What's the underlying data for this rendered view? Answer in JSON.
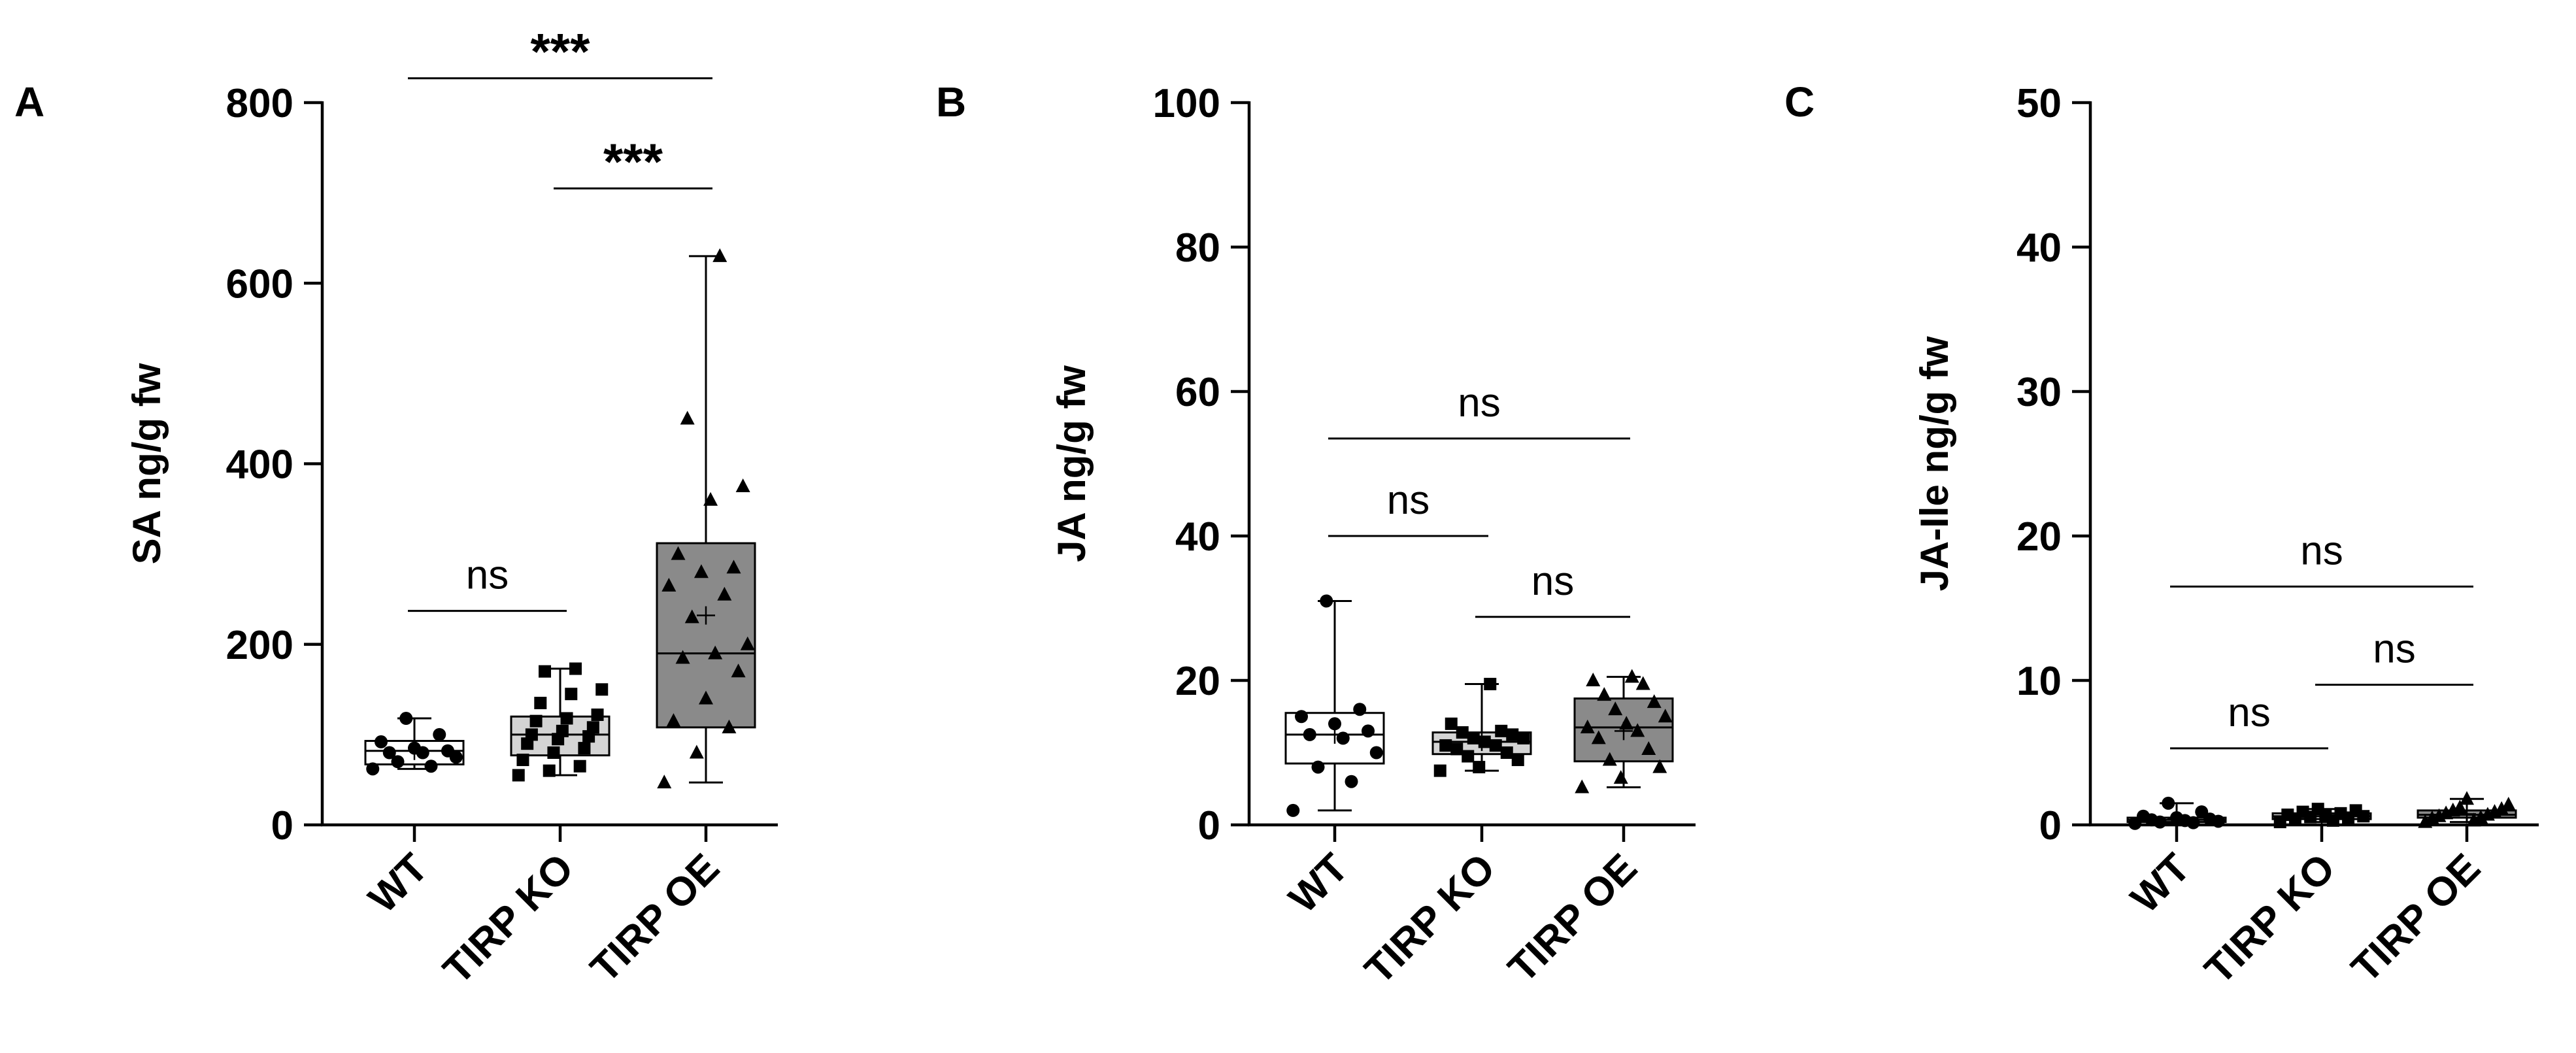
{
  "chart_data": [
    {
      "type": "box",
      "panel": "A",
      "ylabel": "SA ng/g fw",
      "ylim": [
        0,
        800
      ],
      "yticks": [
        0,
        200,
        400,
        600,
        800
      ],
      "categories": [
        "WT",
        "TIRP KO",
        "TIRP OE"
      ],
      "boxes": [
        {
          "name": "WT",
          "min": 62,
          "q1": 67,
          "median": 82,
          "q3": 93,
          "max": 118,
          "mean": 82,
          "marker": "circle",
          "fill": "#ffffff",
          "points": [
            62,
            65,
            70,
            75,
            80,
            80,
            82,
            85,
            92,
            100,
            118
          ]
        },
        {
          "name": "TIRP KO",
          "min": 55,
          "q1": 77,
          "median": 100,
          "q3": 120,
          "max": 173,
          "mean": 100,
          "marker": "square",
          "fill": "#d4d4d4",
          "points": [
            55,
            60,
            65,
            72,
            80,
            85,
            90,
            95,
            98,
            100,
            104,
            108,
            115,
            118,
            122,
            135,
            145,
            150,
            170,
            173
          ]
        },
        {
          "name": "TIRP OE",
          "min": 47,
          "q1": 108,
          "median": 190,
          "q3": 312,
          "max": 630,
          "mean": 232,
          "marker": "triangle",
          "fill": "#8a8a8a",
          "points": [
            47,
            80,
            108,
            115,
            140,
            170,
            185,
            190,
            200,
            230,
            255,
            265,
            280,
            285,
            300,
            360,
            375,
            450,
            630
          ]
        }
      ],
      "comparisons": [
        {
          "from": "WT",
          "to": "TIRP KO",
          "label": "ns",
          "y": 237
        },
        {
          "from": "TIRP KO",
          "to": "TIRP OE",
          "label": "***",
          "y": 705
        },
        {
          "from": "WT",
          "to": "TIRP OE",
          "label": "***",
          "y": 827
        }
      ]
    },
    {
      "type": "box",
      "panel": "B",
      "ylabel": "JA ng/g fw",
      "ylim": [
        0,
        100
      ],
      "yticks": [
        0,
        20,
        40,
        60,
        80,
        100
      ],
      "categories": [
        "WT",
        "TIRP KO",
        "TIRP OE"
      ],
      "boxes": [
        {
          "name": "WT",
          "min": 2,
          "q1": 8.5,
          "median": 12.5,
          "q3": 15.5,
          "max": 31,
          "mean": 12.5,
          "marker": "circle",
          "fill": "#ffffff",
          "points": [
            2,
            6,
            8,
            10,
            12,
            12.5,
            13,
            14,
            15,
            16,
            31
          ]
        },
        {
          "name": "TIRP KO",
          "min": 7.5,
          "q1": 9.8,
          "median": 11.5,
          "q3": 12.8,
          "max": 19.5,
          "mean": 11.5,
          "marker": "square",
          "fill": "#d4d4d4",
          "points": [
            7.5,
            8,
            9,
            9.5,
            10,
            10.5,
            11,
            11,
            11.5,
            12,
            12,
            12.5,
            12.8,
            13,
            14,
            19.5
          ]
        },
        {
          "name": "TIRP OE",
          "min": 5.2,
          "q1": 8.8,
          "median": 13.5,
          "q3": 17.5,
          "max": 20.5,
          "mean": 13,
          "marker": "triangle",
          "fill": "#8a8a8a",
          "points": [
            5.2,
            6.5,
            8,
            9,
            10.5,
            12,
            13,
            13.5,
            14,
            15,
            16,
            17,
            18,
            19.5,
            20,
            20.5
          ]
        }
      ],
      "comparisons": [
        {
          "from": "WT",
          "to": "TIRP KO",
          "label": "ns",
          "y": 40
        },
        {
          "from": "TIRP KO",
          "to": "TIRP OE",
          "label": "ns",
          "y": 28.8
        },
        {
          "from": "WT",
          "to": "TIRP OE",
          "label": "ns",
          "y": 53.5
        }
      ]
    },
    {
      "type": "box",
      "panel": "C",
      "ylabel": "JA-Ile ng/g fw",
      "ylim": [
        0,
        50
      ],
      "yticks": [
        0,
        10,
        20,
        30,
        40,
        50
      ],
      "categories": [
        "WT",
        "TIRP KO",
        "TIRP OE"
      ],
      "boxes": [
        {
          "name": "WT",
          "min": 0.1,
          "q1": 0.2,
          "median": 0.35,
          "q3": 0.5,
          "max": 1.5,
          "mean": 0.4,
          "marker": "circle",
          "fill": "#ffffff",
          "points": [
            0.1,
            0.15,
            0.2,
            0.25,
            0.3,
            0.35,
            0.4,
            0.5,
            0.6,
            0.9,
            1.5
          ]
        },
        {
          "name": "TIRP KO",
          "min": 0.2,
          "q1": 0.4,
          "median": 0.6,
          "q3": 0.8,
          "max": 1.1,
          "mean": 0.6,
          "marker": "square",
          "fill": "#d4d4d4",
          "points": [
            0.2,
            0.3,
            0.4,
            0.5,
            0.55,
            0.6,
            0.65,
            0.7,
            0.8,
            0.9,
            1.0,
            1.1
          ]
        },
        {
          "name": "TIRP OE",
          "min": 0.2,
          "q1": 0.5,
          "median": 0.7,
          "q3": 1.0,
          "max": 1.8,
          "mean": 0.75,
          "marker": "triangle",
          "fill": "#8a8a8a",
          "points": [
            0.2,
            0.3,
            0.45,
            0.5,
            0.6,
            0.7,
            0.8,
            0.9,
            1.0,
            1.1,
            1.2,
            1.4,
            1.8
          ]
        }
      ],
      "comparisons": [
        {
          "from": "WT",
          "to": "TIRP KO",
          "label": "ns",
          "y": 5.3
        },
        {
          "from": "TIRP KO",
          "to": "TIRP OE",
          "label": "ns",
          "y": 9.7
        },
        {
          "from": "WT",
          "to": "TIRP OE",
          "label": "ns",
          "y": 16.5
        }
      ]
    }
  ]
}
